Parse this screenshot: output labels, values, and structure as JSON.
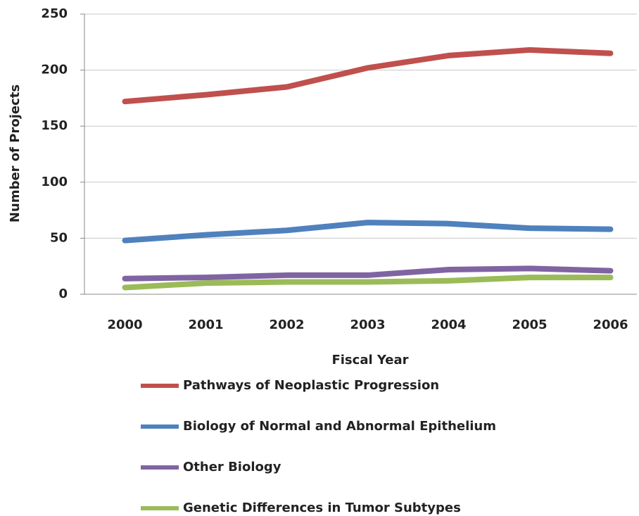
{
  "chart_data": {
    "type": "line",
    "x_label": "Fiscal Year",
    "y_label": "Number of Projects",
    "categories": [
      "2000",
      "2001",
      "2002",
      "2003",
      "2004",
      "2005",
      "2006"
    ],
    "series": [
      {
        "name": "Pathways of Neoplastic Progression",
        "color": "#c0504d",
        "values": [
          172,
          178,
          185,
          202,
          213,
          218,
          215
        ]
      },
      {
        "name": "Biology of Normal and Abnormal Epithelium",
        "color": "#4f81bd",
        "values": [
          48,
          53,
          57,
          64,
          63,
          59,
          58
        ]
      },
      {
        "name": "Other Biology",
        "color": "#8064a2",
        "values": [
          14,
          15,
          17,
          17,
          22,
          23,
          21
        ]
      },
      {
        "name": "Genetic Differences in Tumor Subtypes",
        "color": "#9bbb59",
        "values": [
          6,
          10,
          11,
          11,
          12,
          15,
          15
        ]
      }
    ],
    "ylim": [
      0,
      250
    ],
    "yticks": [
      0,
      50,
      100,
      150,
      200,
      250
    ],
    "grid": true
  }
}
